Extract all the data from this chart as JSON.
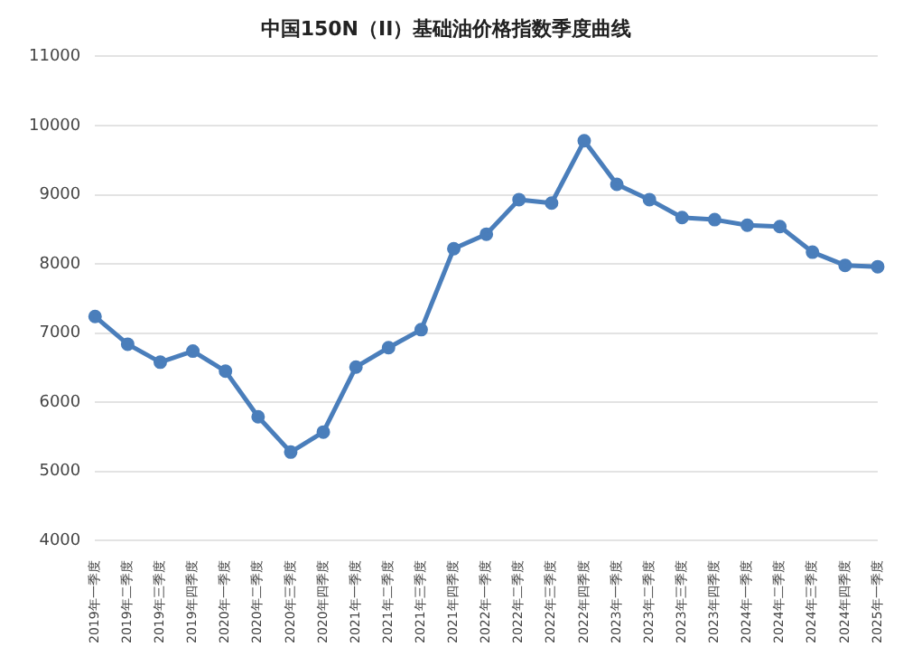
{
  "chart_data": {
    "type": "line",
    "title": "中国150N（II）基础油价格指数季度曲线",
    "categories": [
      "2019年一季度",
      "2019年二季度",
      "2019年三季度",
      "2019年四季度",
      "2020年一季度",
      "2020年二季度",
      "2020年三季度",
      "2020年四季度",
      "2021年一季度",
      "2021年二季度",
      "2021年三季度",
      "2021年四季度",
      "2022年一季度",
      "2022年二季度",
      "2022年三季度",
      "2022年四季度",
      "2023年一季度",
      "2023年二季度",
      "2023年三季度",
      "2023年四季度",
      "2024年一季度",
      "2024年二季度",
      "2024年三季度",
      "2024年四季度",
      "2025年一季度"
    ],
    "series": [
      {
        "color": "#4a7ebb",
        "values": [
          7240,
          6840,
          6580,
          6740,
          6450,
          5790,
          5280,
          5570,
          6510,
          6790,
          7050,
          8220,
          8430,
          8930,
          8880,
          9780,
          9150,
          8930,
          8670,
          8640,
          8560,
          8540,
          8170,
          7980,
          7960
        ]
      }
    ],
    "ylim": [
      4000,
      11000
    ],
    "yticks": [
      4000,
      5000,
      6000,
      7000,
      8000,
      9000,
      10000,
      11000
    ],
    "grid": "y",
    "marker": "circle",
    "line_style": "solid",
    "legend": false
  }
}
